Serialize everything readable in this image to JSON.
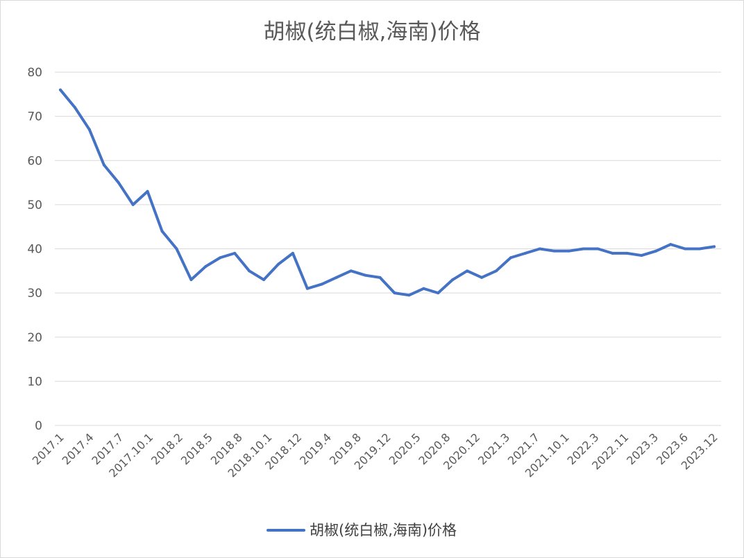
{
  "chart_data": {
    "type": "line",
    "title": "胡椒(统白椒,海南)价格",
    "xlabel": "",
    "ylabel": "",
    "ylim": [
      0,
      80
    ],
    "yticks": [
      0,
      10,
      20,
      30,
      40,
      50,
      60,
      70,
      80
    ],
    "grid": true,
    "legend_position": "bottom",
    "x_tick_labels": [
      "2017.1",
      "2017.4",
      "2017.7",
      "2017.10.1",
      "2018.2",
      "2018.5",
      "2018.8",
      "2018.10.1",
      "2018.12",
      "2019.4",
      "2019.8",
      "2019.12",
      "2020.5",
      "2020.8",
      "2020.12",
      "2021.3",
      "2021.7",
      "2021.10.1",
      "2022.3",
      "2022.11",
      "2023.3",
      "2023.6",
      "2023.12"
    ],
    "colors": {
      "series": "#4472c4",
      "grid": "#d9d9d9",
      "text": "#595959"
    },
    "series": [
      {
        "name": "胡椒(统白椒,海南)价格",
        "values": [
          76,
          72,
          67,
          59,
          55,
          50,
          53,
          44,
          40,
          33,
          36,
          38,
          39,
          35,
          33,
          36.5,
          39,
          31,
          32,
          33.5,
          35,
          34,
          33.5,
          30,
          29.5,
          31,
          30,
          33,
          35,
          33.5,
          35,
          38,
          39,
          40,
          39.5,
          39.5,
          40,
          40,
          39,
          39,
          38.5,
          39.5,
          41,
          40,
          40,
          40.5
        ]
      }
    ]
  }
}
